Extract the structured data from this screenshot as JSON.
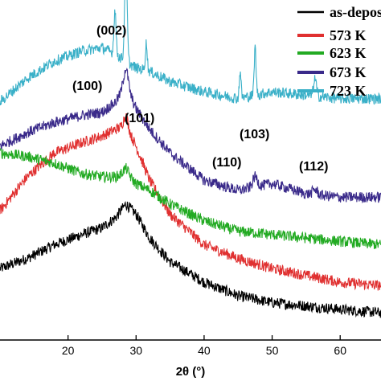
{
  "chart_data": {
    "type": "line",
    "xlabel": "2θ (°)",
    "ylabel": "",
    "title": "",
    "xlim": [
      10,
      66
    ],
    "ylim": [
      0,
      100
    ],
    "x_ticks": [
      "20",
      "30",
      "40",
      "50",
      "60"
    ],
    "grid": false,
    "legend_position": "top-right",
    "series": [
      {
        "name": "as-deposited",
        "color": "#000000",
        "x": [
          10,
          14,
          18,
          22,
          25,
          27,
          28.5,
          30,
          32,
          35,
          40,
          45,
          50,
          55,
          60,
          66
        ],
        "y": [
          21,
          24,
          28,
          31,
          33,
          36,
          40,
          37,
          30,
          23,
          17,
          13,
          11,
          10,
          9,
          8
        ]
      },
      {
        "name": "573 K",
        "color": "#e03030",
        "x": [
          10,
          14,
          18,
          22,
          25,
          27,
          28.5,
          30,
          32,
          35,
          40,
          45,
          50,
          55,
          60,
          66
        ],
        "y": [
          38,
          48,
          55,
          58,
          60,
          62,
          63,
          57,
          47,
          37,
          28,
          24,
          21,
          19,
          17,
          16
        ]
      },
      {
        "name": "623 K",
        "color": "#22aa22",
        "x": [
          10,
          14,
          18,
          22,
          25,
          27,
          28.5,
          30,
          32,
          35,
          40,
          45,
          50,
          55,
          60,
          66
        ],
        "y": [
          55,
          54,
          52,
          49,
          48,
          48,
          49,
          46,
          44,
          40,
          35,
          32,
          31,
          30,
          29,
          28
        ]
      },
      {
        "name": "673 K",
        "color": "#3a2a8a",
        "x": [
          10,
          14,
          18,
          22,
          25,
          27,
          28.5,
          30,
          32,
          35,
          40,
          45,
          50,
          55,
          60,
          66
        ],
        "y": [
          57,
          61,
          64,
          66,
          67,
          70,
          75,
          68,
          62,
          55,
          47,
          44,
          46,
          43,
          42,
          42
        ]
      },
      {
        "name": "723 K",
        "color": "#3ab0c8",
        "x": [
          10,
          14,
          18,
          22,
          25,
          27,
          28.5,
          30,
          32,
          35,
          40,
          45,
          50,
          55,
          60,
          66
        ],
        "y": [
          70,
          77,
          82,
          85,
          86,
          84,
          82,
          80,
          79,
          76,
          73,
          71,
          73,
          72,
          71,
          71
        ]
      }
    ],
    "annotations": [
      {
        "text": "(002)",
        "x": 28.5
      },
      {
        "text": "(100)",
        "x": 26.9
      },
      {
        "text": "(101)",
        "x": 31.5
      },
      {
        "text": "(110)",
        "x": 45.3
      },
      {
        "text": "(103)",
        "x": 47.5
      },
      {
        "text": "(112)",
        "x": 56.3
      }
    ],
    "legend": [
      {
        "label": "as-depos",
        "color": "#000000"
      },
      {
        "label": "573 K",
        "color": "#e03030"
      },
      {
        "label": "623 K",
        "color": "#22aa22"
      },
      {
        "label": "673 K",
        "color": "#3a2a8a"
      },
      {
        "label": "723 K",
        "color": "#3ab0c8"
      }
    ]
  }
}
